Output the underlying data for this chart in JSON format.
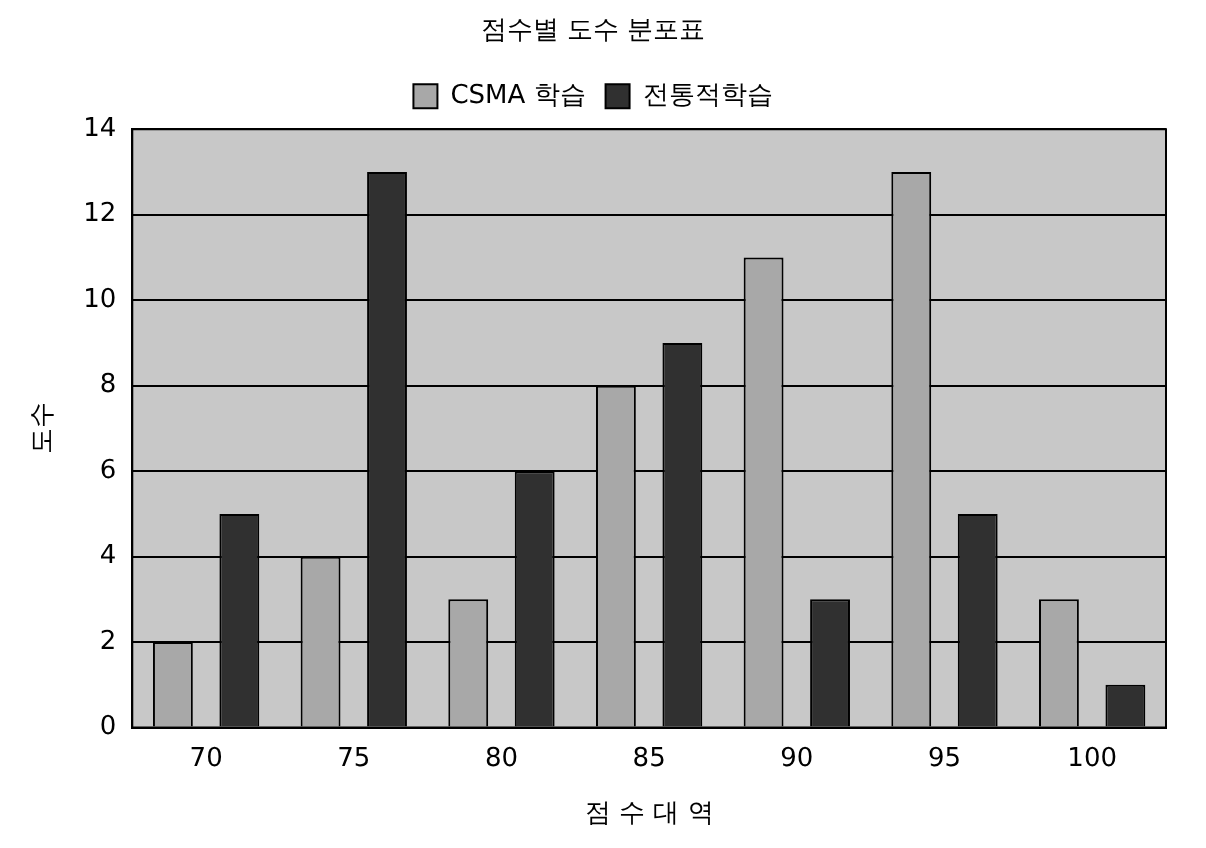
{
  "chart_data": {
    "type": "bar",
    "title": "점수별 도수 분포표",
    "xlabel": "점 수 대 역",
    "ylabel": "도수",
    "categories": [
      "70",
      "75",
      "80",
      "85",
      "90",
      "95",
      "100"
    ],
    "series": [
      {
        "name": "CSMA 학습",
        "color": "#a8a8a8",
        "values": [
          2,
          4,
          3,
          8,
          11,
          13,
          3
        ]
      },
      {
        "name": "전통적학습",
        "color": "#303030",
        "values": [
          5,
          13,
          6,
          9,
          3,
          5,
          1
        ]
      }
    ],
    "ylim": [
      0,
      14
    ],
    "yticks": [
      0,
      2,
      4,
      6,
      8,
      10,
      12,
      14
    ],
    "grid": "y",
    "legend": "top"
  }
}
